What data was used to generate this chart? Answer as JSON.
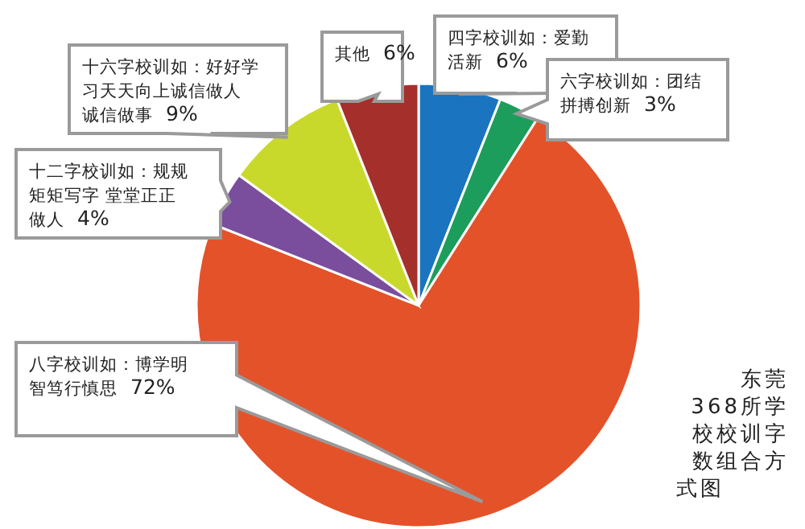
{
  "chart_data": {
    "type": "pie",
    "title": "东莞368所学校校训字数组合方式图",
    "categories": [
      "四字校训如：爱勤活新",
      "六字校训如：团结拼搏创新",
      "八字校训如：博学明智笃行慎思",
      "十二字校训如：规规矩矩写字 堂堂正正做人",
      "十六字校训如：好好学习天天向上诚信做人诚信做事",
      "其他"
    ],
    "values": [
      6,
      3,
      72,
      4,
      9,
      6
    ],
    "value_labels": [
      "6%",
      "3%",
      "72%",
      "4%",
      "9%",
      "6%"
    ],
    "colors": [
      "#1a74c0",
      "#1c9d5c",
      "#e4522a",
      "#7a4e9c",
      "#c9d92c",
      "#a52f2a"
    ]
  }
}
